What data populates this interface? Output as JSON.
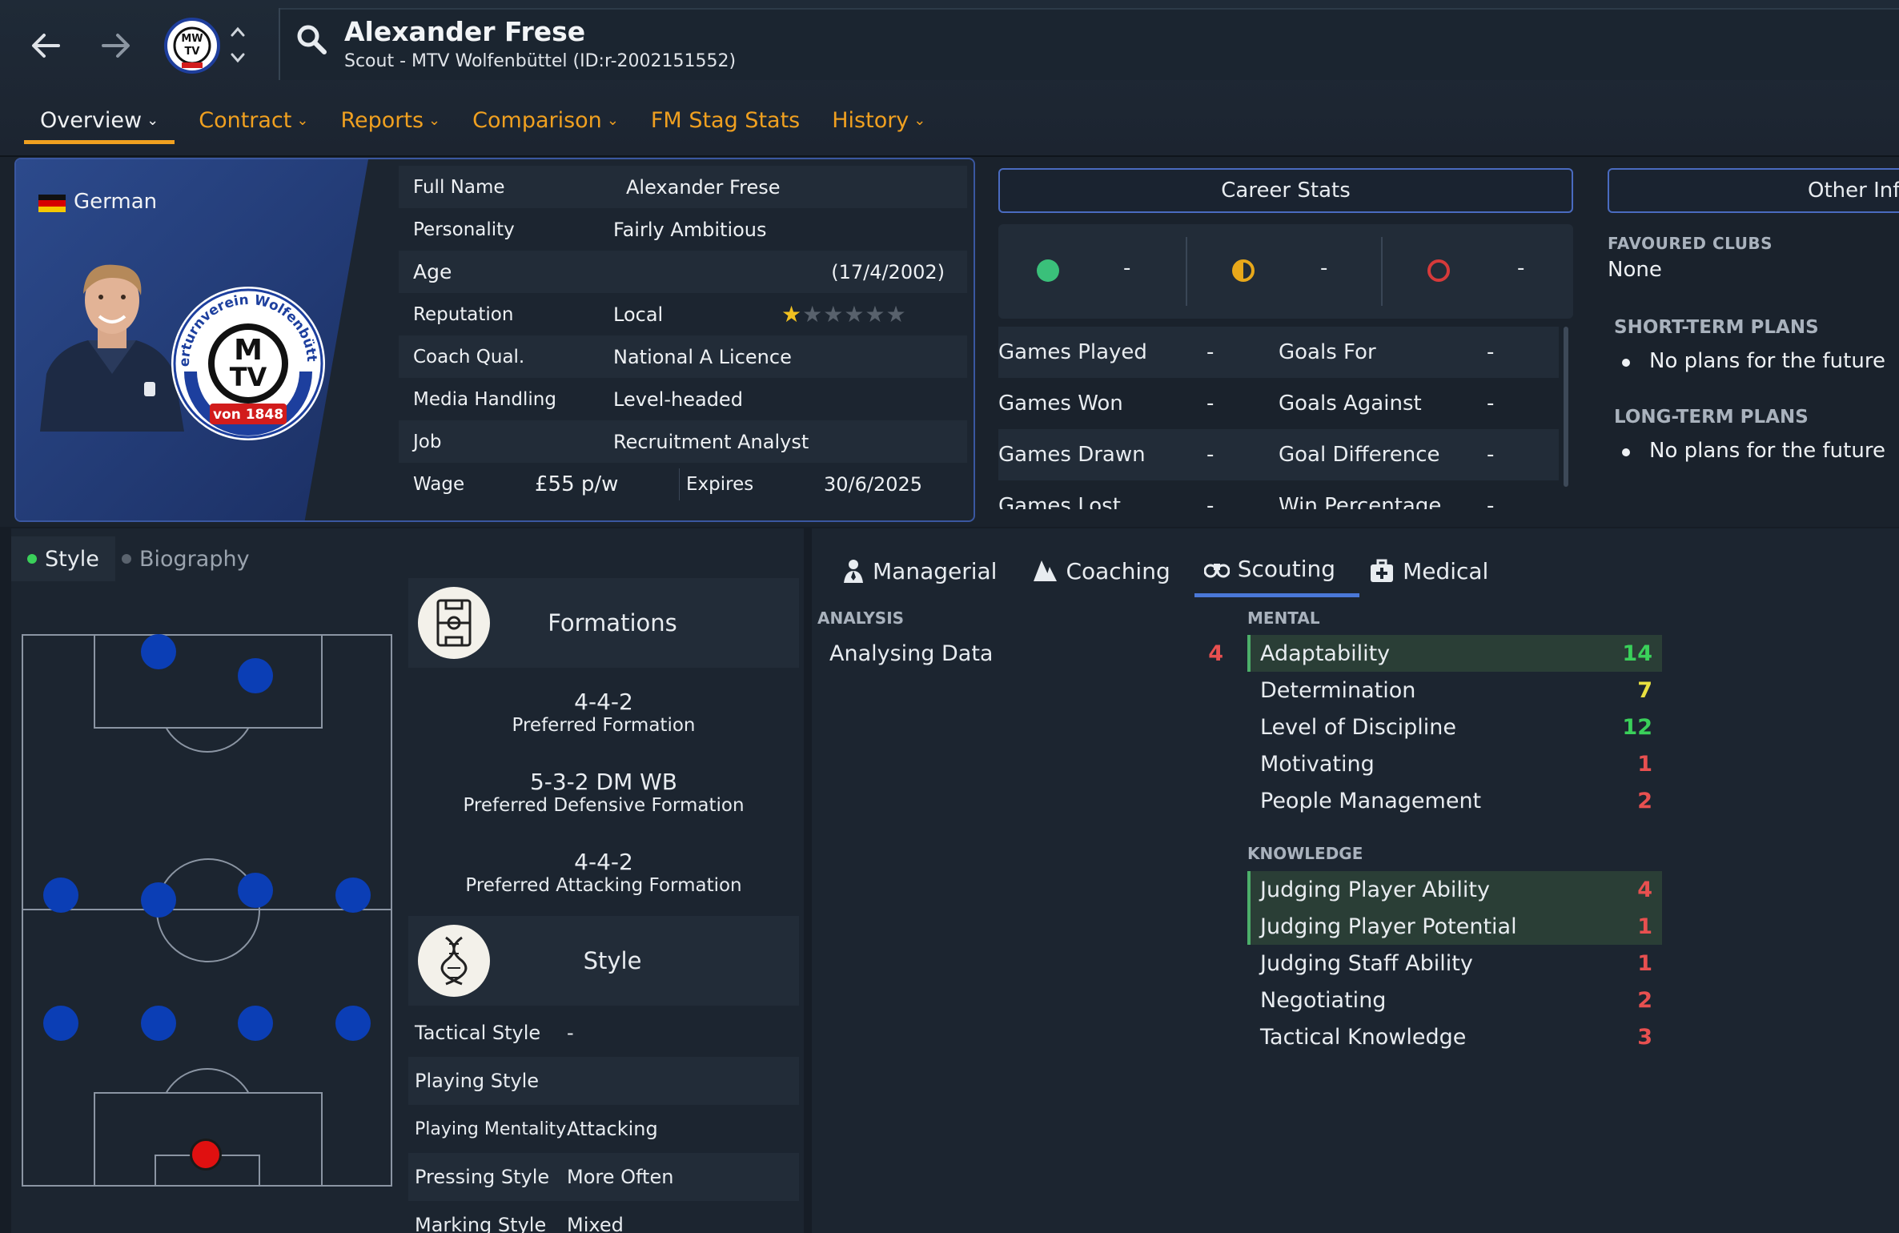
{
  "header": {
    "name": "Alexander Frese",
    "subtitle": "Scout - MTV Wolfenbüttel (ID:r-2002151552)",
    "back_icon": "arrow-left-icon",
    "forward_icon": "arrow-right-icon"
  },
  "tabs": [
    {
      "label": "Overview",
      "dropdown": true,
      "active": true
    },
    {
      "label": "Contract",
      "dropdown": true
    },
    {
      "label": "Reports",
      "dropdown": true
    },
    {
      "label": "Comparison",
      "dropdown": true
    },
    {
      "label": "FM Stag Stats",
      "dropdown": false
    },
    {
      "label": "History",
      "dropdown": true
    }
  ],
  "profile": {
    "nationality": "German",
    "club_logo_text_top": "Männerturnverein Wolfenbüttel e.V.",
    "club_logo_text_bottom": "von 1848",
    "club_logo_letters": "MTV"
  },
  "info": {
    "full_name_label": "Full Name",
    "full_name": "Alexander Frese",
    "personality_label": "Personality",
    "personality": "Fairly Ambitious",
    "age_label": "Age",
    "age": "(17/4/2002)",
    "reputation_label": "Reputation",
    "reputation": "Local",
    "reputation_stars": 0.5,
    "coach_label": "Coach Qual.",
    "coach": "National A Licence",
    "media_label": "Media Handling",
    "media": "Level-headed",
    "job_label": "Job",
    "job": "Recruitment Analyst",
    "wage_label": "Wage",
    "wage": "£55 p/w",
    "expires_label": "Expires",
    "expires": "30/6/2025"
  },
  "career": {
    "title": "Career Stats",
    "wins": "-",
    "draws": "-",
    "losses": "-",
    "rows": [
      {
        "l1": "Games Played",
        "v1": "-",
        "l2": "Goals For",
        "v2": "-"
      },
      {
        "l1": "Games Won",
        "v1": "-",
        "l2": "Goals Against",
        "v2": "-"
      },
      {
        "l1": "Games Drawn",
        "v1": "-",
        "l2": "Goal Difference",
        "v2": "-"
      },
      {
        "l1": "Games Lost",
        "v1": "-",
        "l2": "Win Percentage",
        "v2": "-"
      }
    ]
  },
  "other": {
    "title": "Other Info",
    "fav_label": "FAVOURED CLUBS",
    "fav_value": "None",
    "short_label": "SHORT-TERM PLANS",
    "short_value": "No plans for the future",
    "long_label": "LONG-TERM PLANS",
    "long_value": "No plans for the future"
  },
  "lower_tabs": {
    "style": "Style",
    "bio": "Biography"
  },
  "formations": {
    "title": "Formations",
    "items": [
      {
        "value": "4-4-2",
        "label": "Preferred Formation"
      },
      {
        "value": "5-3-2 DM WB",
        "label": "Preferred Defensive Formation"
      },
      {
        "value": "4-4-2",
        "label": "Preferred Attacking Formation"
      }
    ]
  },
  "style": {
    "title": "Style",
    "rows": [
      {
        "label": "Tactical Style",
        "value": "-"
      },
      {
        "label": "Playing Style",
        "value": ""
      },
      {
        "label": "Playing Mentality",
        "value": "Attacking"
      },
      {
        "label": "Pressing Style",
        "value": "More Often"
      },
      {
        "label": "Marking Style",
        "value": "Mixed"
      }
    ]
  },
  "attr_tabs": [
    "Managerial",
    "Coaching",
    "Scouting",
    "Medical"
  ],
  "analysis": {
    "label": "ANALYSIS",
    "items": [
      {
        "name": "Analysing Data",
        "value": "4"
      }
    ]
  },
  "mental": {
    "label": "MENTAL",
    "items": [
      {
        "name": "Adaptability",
        "value": "14"
      },
      {
        "name": "Determination",
        "value": "7"
      },
      {
        "name": "Level of Discipline",
        "value": "12"
      },
      {
        "name": "Motivating",
        "value": "1"
      },
      {
        "name": "People Management",
        "value": "2"
      }
    ]
  },
  "knowledge": {
    "label": "KNOWLEDGE",
    "items": [
      {
        "name": "Judging Player Ability",
        "value": "4"
      },
      {
        "name": "Judging Player Potential",
        "value": "1"
      },
      {
        "name": "Judging Staff Ability",
        "value": "1"
      },
      {
        "name": "Negotiating",
        "value": "2"
      },
      {
        "name": "Tactical Knowledge",
        "value": "3"
      }
    ]
  },
  "colors": {
    "accent": "#f0a020",
    "high": "#3ad05a",
    "mid": "#e8e040",
    "low": "#e85050",
    "border_blue": "#4a6bc0"
  }
}
